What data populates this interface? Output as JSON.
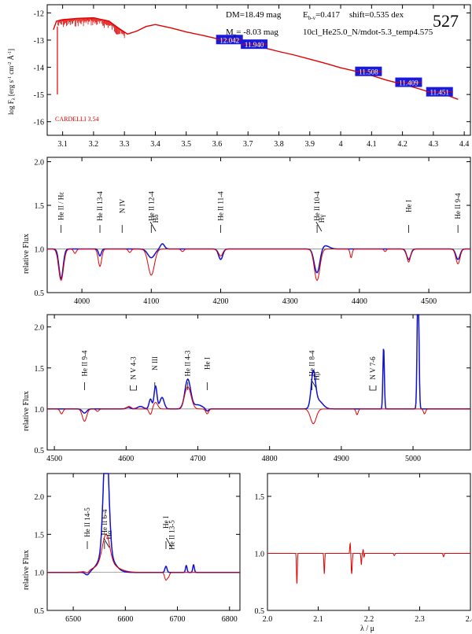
{
  "figure_id": "527",
  "header": {
    "dm": "DM=18.49 mag",
    "ebv": "E",
    "ebv_sub": "b-v",
    "ebv_val": "=0.417",
    "shift": "shift=0.535 dex",
    "mv": "M",
    "mv_sub": "v",
    "mv_val": "=  -8.03 mag",
    "model": "10cl_He25.0_N/mdot-5.3_temp4.575"
  },
  "colors": {
    "model": "#e00000",
    "observed": "#1010d0",
    "box": "#1a1ad8",
    "box_text": "#ffffff",
    "axis": "#000000"
  },
  "chart_data": [
    {
      "id": "sed",
      "type": "line",
      "title": "",
      "xlabel": "",
      "ylabel": "log Fλ [erg s-1 cm-2 Å-1]",
      "ylabel_parts": {
        "main": "log F",
        "sub": "λ",
        "unit": "[erg s",
        "e1": "-1",
        "u2": " cm",
        "e2": "-2",
        "u3": " Å",
        "e3": "-1",
        "u4": "]"
      },
      "xlim": [
        3.05,
        4.42
      ],
      "ylim": [
        -16.5,
        -11.7
      ],
      "xticks": [
        3.1,
        3.2,
        3.3,
        3.4,
        3.5,
        3.6,
        3.7,
        3.8,
        3.9,
        4.0,
        4.1,
        4.2,
        4.3,
        4.4
      ],
      "xtick_labels": [
        "3.1",
        "3.2",
        "3.3",
        "3.4",
        "3.5",
        "3.6",
        "3.7",
        "3.8",
        "3.9",
        "4",
        "4.1",
        "4.2",
        "4.3",
        "4.4"
      ],
      "yticks": [
        -12,
        -13,
        -14,
        -15,
        -16
      ],
      "ytick_labels": [
        "-12",
        "-13",
        "-14",
        "-15",
        "-16"
      ],
      "annotation": "CARDELLI 3.54",
      "model_sed": {
        "x": [
          3.07,
          3.08,
          3.1,
          3.15,
          3.2,
          3.25,
          3.28,
          3.31,
          3.34,
          3.37,
          3.4,
          3.45,
          3.5,
          3.55,
          3.6,
          3.65,
          3.7,
          3.75,
          3.8,
          3.85,
          3.9,
          3.95,
          4.0,
          4.05,
          4.1,
          4.15,
          4.2,
          4.25,
          4.3,
          4.35,
          4.38
        ],
        "y": [
          -12.62,
          -12.3,
          -12.25,
          -12.2,
          -12.18,
          -12.3,
          -12.55,
          -12.78,
          -12.67,
          -12.5,
          -12.43,
          -12.55,
          -12.7,
          -12.82,
          -12.95,
          -13.05,
          -13.15,
          -13.28,
          -13.42,
          -13.55,
          -13.7,
          -13.85,
          -14.02,
          -14.15,
          -14.3,
          -14.48,
          -14.62,
          -14.78,
          -14.95,
          -15.05,
          -15.18
        ]
      },
      "photometry": [
        {
          "x": 3.64,
          "y": -12.98,
          "label": "12.042"
        },
        {
          "x": 3.72,
          "y": -13.15,
          "label": "11.940"
        },
        {
          "x": 4.09,
          "y": -14.15,
          "label": "11.508"
        },
        {
          "x": 4.22,
          "y": -14.55,
          "label": "11.409"
        },
        {
          "x": 4.32,
          "y": -14.9,
          "label": "11.451"
        }
      ]
    },
    {
      "id": "blue",
      "type": "line",
      "xlim": [
        3950,
        4560
      ],
      "ylim": [
        0.5,
        2.05
      ],
      "xticks": [
        4000,
        4100,
        4200,
        4300,
        4400,
        4500
      ],
      "yticks": [
        0.5,
        1.0,
        1.5,
        2.0
      ],
      "ytick_labels": [
        "0.5",
        "1.0",
        "1.5",
        "2.0"
      ],
      "ylabel": "relative Flux",
      "reference_line": 1.0,
      "lines_id": [
        {
          "x": 3970,
          "label": "He II / Hε"
        },
        {
          "x": 4026,
          "label": "He II 13-4"
        },
        {
          "x": 4058,
          "label": "N IV"
        },
        {
          "x": 4100,
          "label": "He II 12-4"
        },
        {
          "x": 4102,
          "label": "Hδ",
          "kind": "branch"
        },
        {
          "x": 4200,
          "label": "He II 11-4"
        },
        {
          "x": 4339,
          "label": "He II 10-4"
        },
        {
          "x": 4341,
          "label": "Hγ",
          "kind": "branch"
        },
        {
          "x": 4471,
          "label": "He I"
        },
        {
          "x": 4542,
          "label": "He II 9-4"
        }
      ],
      "observed": {
        "continuum": 1.0,
        "features": [
          [
            3970,
            -0.34,
            3
          ],
          [
            4026,
            -0.08,
            2
          ],
          [
            4100,
            -0.1,
            5
          ],
          [
            4116,
            0.06,
            3
          ],
          [
            4200,
            -0.12,
            3
          ],
          [
            4339,
            -0.28,
            4
          ],
          [
            4350,
            0.04,
            6
          ],
          [
            4471,
            -0.12,
            3
          ],
          [
            4542,
            -0.12,
            3
          ]
        ]
      },
      "model": {
        "continuum": 1.0,
        "features": [
          [
            3970,
            -0.36,
            3.5
          ],
          [
            3990,
            -0.05,
            2
          ],
          [
            4026,
            -0.2,
            2.5
          ],
          [
            4069,
            -0.04,
            2
          ],
          [
            4100,
            -0.3,
            4.5
          ],
          [
            4145,
            -0.03,
            2
          ],
          [
            4200,
            -0.08,
            3
          ],
          [
            4339,
            -0.36,
            4
          ],
          [
            4388,
            -0.1,
            1.5
          ],
          [
            4437,
            -0.03,
            1.5
          ],
          [
            4471,
            -0.15,
            2.5
          ],
          [
            4542,
            -0.17,
            3
          ]
        ]
      }
    },
    {
      "id": "green",
      "type": "line",
      "xlim": [
        4490,
        5080
      ],
      "ylim": [
        0.5,
        2.15
      ],
      "xticks": [
        4500,
        4600,
        4700,
        4800,
        4900,
        5000
      ],
      "yticks": [
        0.5,
        1.0,
        1.5,
        2.0
      ],
      "ytick_labels": [
        "0.5",
        "1.0",
        "1.5",
        "2.0"
      ],
      "ylabel": "relative Flux",
      "reference_line": 1.0,
      "lines_id": [
        {
          "x": 4542,
          "label": "He II 9-4"
        },
        {
          "x": 4610,
          "label": "N V 4-3",
          "kind": "bracket"
        },
        {
          "x": 4640,
          "label": "N III"
        },
        {
          "x": 4686,
          "label": "He II 4-3"
        },
        {
          "x": 4713,
          "label": "He I"
        },
        {
          "x": 4859,
          "label": "He II 8-4"
        },
        {
          "x": 4861,
          "label": "Hβ",
          "kind": "branch"
        },
        {
          "x": 4944,
          "label": "N V 7-6",
          "kind": "bracket"
        }
      ],
      "observed": {
        "continuum": 1.0,
        "features": [
          [
            4542,
            -0.05,
            3
          ],
          [
            4603,
            0.02,
            3
          ],
          [
            4620,
            0.03,
            4
          ],
          [
            4634,
            0.12,
            2
          ],
          [
            4641,
            0.28,
            2
          ],
          [
            4650,
            0.14,
            3
          ],
          [
            4686,
            0.36,
            4
          ],
          [
            4700,
            0.05,
            6
          ],
          [
            4713,
            -0.03,
            2
          ],
          [
            4861,
            0.42,
            3
          ],
          [
            4868,
            0.1,
            6
          ],
          [
            4959,
            0.76,
            1
          ],
          [
            5007,
            1.8,
            1.2
          ]
        ]
      },
      "model": {
        "continuum": 1.0,
        "features": [
          [
            4510,
            -0.06,
            2
          ],
          [
            4542,
            -0.15,
            3
          ],
          [
            4560,
            -0.03,
            2
          ],
          [
            4604,
            0.03,
            3
          ],
          [
            4634,
            -0.07,
            2
          ],
          [
            4641,
            0.08,
            3
          ],
          [
            4686,
            0.27,
            4.5
          ],
          [
            4713,
            -0.06,
            2
          ],
          [
            4861,
            -0.18,
            4
          ],
          [
            4922,
            -0.07,
            1.5
          ],
          [
            5016,
            -0.06,
            1.5
          ]
        ]
      }
    },
    {
      "id": "red",
      "type": "line",
      "xlim": [
        6450,
        6820
      ],
      "ylim": [
        0.5,
        2.3
      ],
      "xticks": [
        6500,
        6600,
        6700,
        6800
      ],
      "yticks": [
        0.5,
        1.0,
        1.5,
        2.0
      ],
      "ytick_labels": [
        "0.5",
        "1.0",
        "1.5",
        "2.0"
      ],
      "ylabel": "relative Flux",
      "reference_line": 1.0,
      "lines_id": [
        {
          "x": 6527,
          "label": "He II 14-5"
        },
        {
          "x": 6560,
          "label": "He II 6-4"
        },
        {
          "x": 6563,
          "label": "Hα",
          "kind": "branch"
        },
        {
          "x": 6678,
          "label": "He I"
        },
        {
          "x": 6683,
          "label": "He II 13-5",
          "kind": "branch"
        }
      ],
      "observed": {
        "continuum": 1.0,
        "features": [
          [
            6527,
            -0.04,
            4
          ],
          [
            6563,
            1.6,
            5
          ],
          [
            6563,
            0.25,
            14
          ],
          [
            6678,
            0.08,
            2
          ],
          [
            6717,
            0.09,
            1.5
          ],
          [
            6731,
            0.1,
            1.5
          ]
        ]
      },
      "model": {
        "continuum": 1.0,
        "features": [
          [
            6527,
            -0.03,
            3
          ],
          [
            6563,
            0.38,
            7
          ],
          [
            6563,
            0.12,
            20
          ],
          [
            6678,
            -0.1,
            2.5
          ],
          [
            6683,
            -0.05,
            2
          ]
        ]
      }
    },
    {
      "id": "ir",
      "type": "line",
      "xlim": [
        2.0,
        2.4
      ],
      "ylim": [
        0.5,
        1.7
      ],
      "xticks": [
        2.0,
        2.1,
        2.2,
        2.3,
        2.4
      ],
      "xtick_labels": [
        "2.0",
        "2.1",
        "2.2",
        "2.3",
        "2.4"
      ],
      "yticks": [
        0.5,
        1.0,
        1.5
      ],
      "ytick_labels": [
        "0.5",
        "1.0",
        "1.5"
      ],
      "xlabel": "λ / μ",
      "reference_line": 1.0,
      "model": {
        "continuum": 1.0,
        "features": [
          [
            2.058,
            -0.27,
            0.0008
          ],
          [
            2.112,
            -0.18,
            0.0008
          ],
          [
            2.163,
            0.09,
            0.0008
          ],
          [
            2.166,
            -0.18,
            0.001
          ],
          [
            2.185,
            -0.1,
            0.0008
          ],
          [
            2.189,
            0.05,
            0.0008
          ],
          [
            2.19,
            -0.05,
            0.0008
          ],
          [
            2.25,
            -0.02,
            0.001
          ],
          [
            2.347,
            -0.03,
            0.001
          ]
        ]
      }
    }
  ]
}
